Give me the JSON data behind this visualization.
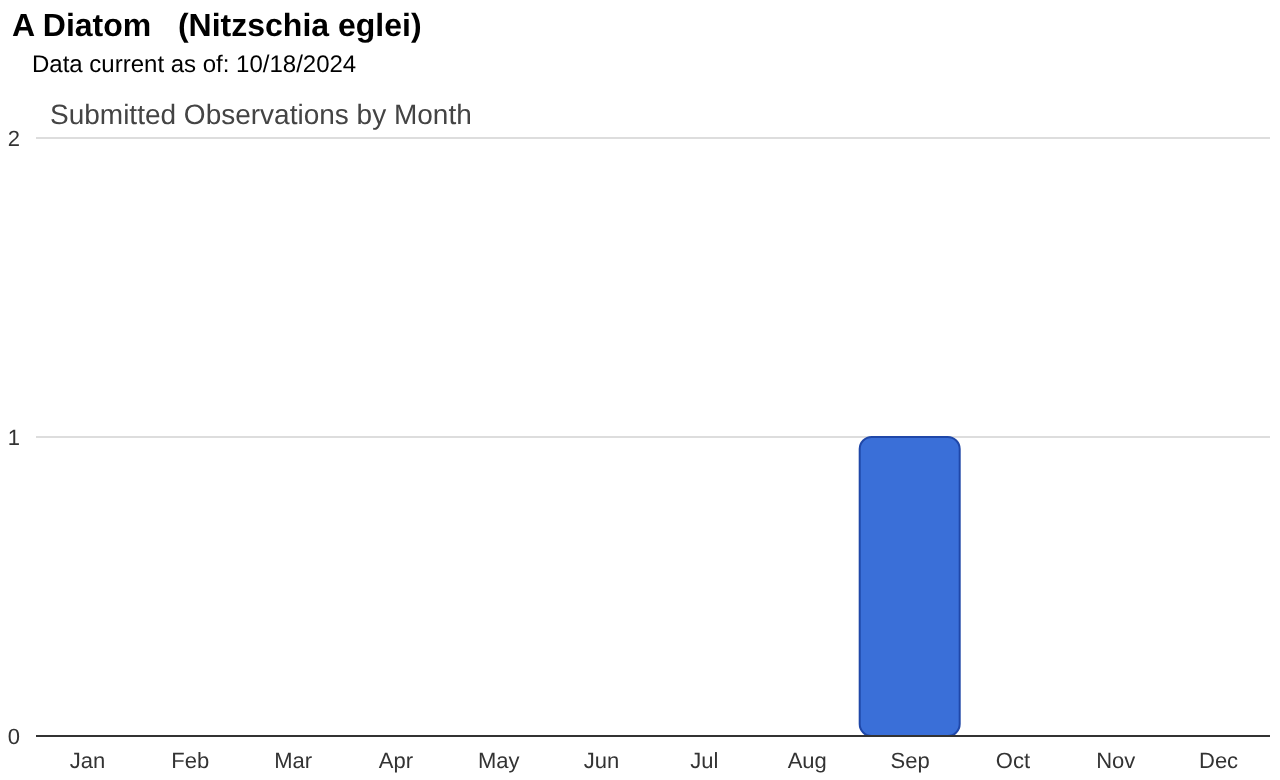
{
  "chart_data": {
    "type": "bar",
    "title": "A Diatom   (Nitzschia eglei)",
    "subtitle": "Data current as of: 10/18/2024",
    "annotations": [
      "Submitted Observations by Month"
    ],
    "categories": [
      "Jan",
      "Feb",
      "Mar",
      "Apr",
      "May",
      "Jun",
      "Jul",
      "Aug",
      "Sep",
      "Oct",
      "Nov",
      "Dec"
    ],
    "values": [
      0,
      0,
      0,
      0,
      0,
      0,
      0,
      0,
      1,
      0,
      0,
      0
    ],
    "color": "#3a6fd8",
    "ylim": [
      0,
      2
    ],
    "yticks": [
      0,
      1,
      2
    ],
    "grid": "y",
    "legend": false
  }
}
